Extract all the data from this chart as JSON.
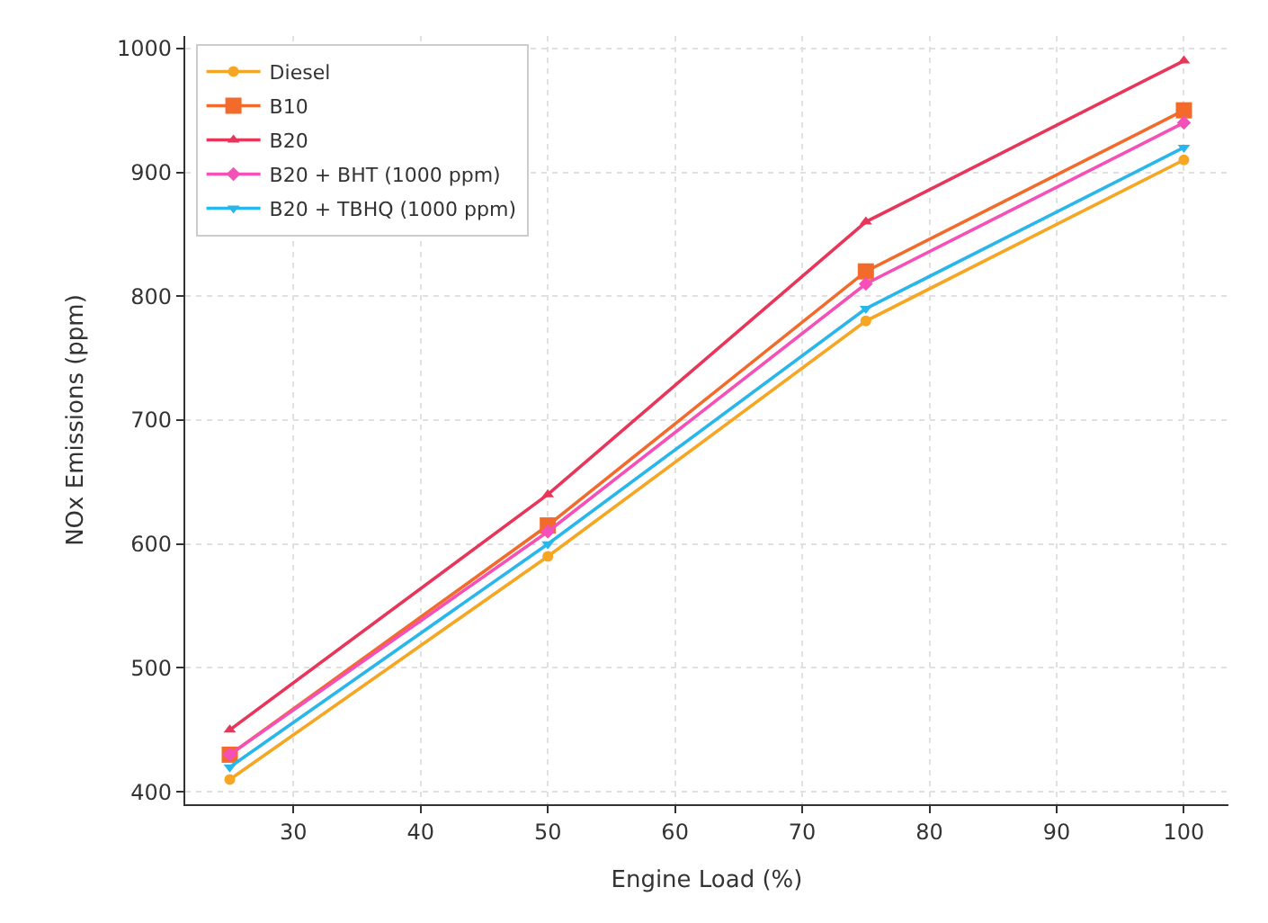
{
  "chart_data": {
    "type": "line",
    "xlabel": "Engine Load (%)",
    "ylabel": "NOx Emissions (ppm)",
    "x": [
      25,
      50,
      75,
      100
    ],
    "series": [
      {
        "name": "Diesel",
        "color": "#f5a623",
        "marker": "circle",
        "values": [
          410,
          590,
          780,
          910
        ]
      },
      {
        "name": "B10",
        "color": "#f26b2a",
        "marker": "square",
        "values": [
          430,
          615,
          820,
          950
        ]
      },
      {
        "name": "B20",
        "color": "#e8355a",
        "marker": "triangle",
        "values": [
          450,
          640,
          860,
          990
        ]
      },
      {
        "name": "B20 + BHT (1000 ppm)",
        "color": "#f54fb8",
        "marker": "diamond",
        "values": [
          430,
          610,
          810,
          940
        ]
      },
      {
        "name": "B20 + TBHQ (1000 ppm)",
        "color": "#29b6ea",
        "marker": "triangle-down",
        "values": [
          420,
          600,
          790,
          920
        ]
      }
    ],
    "xlim": [
      21.5,
      103.5
    ],
    "ylim": [
      390,
      1010
    ],
    "xticks": [
      30,
      40,
      50,
      60,
      70,
      80,
      90,
      100
    ],
    "yticks": [
      400,
      500,
      600,
      700,
      800,
      900,
      1000
    ],
    "grid": true,
    "legend": "top left",
    "line_style": "solid"
  }
}
